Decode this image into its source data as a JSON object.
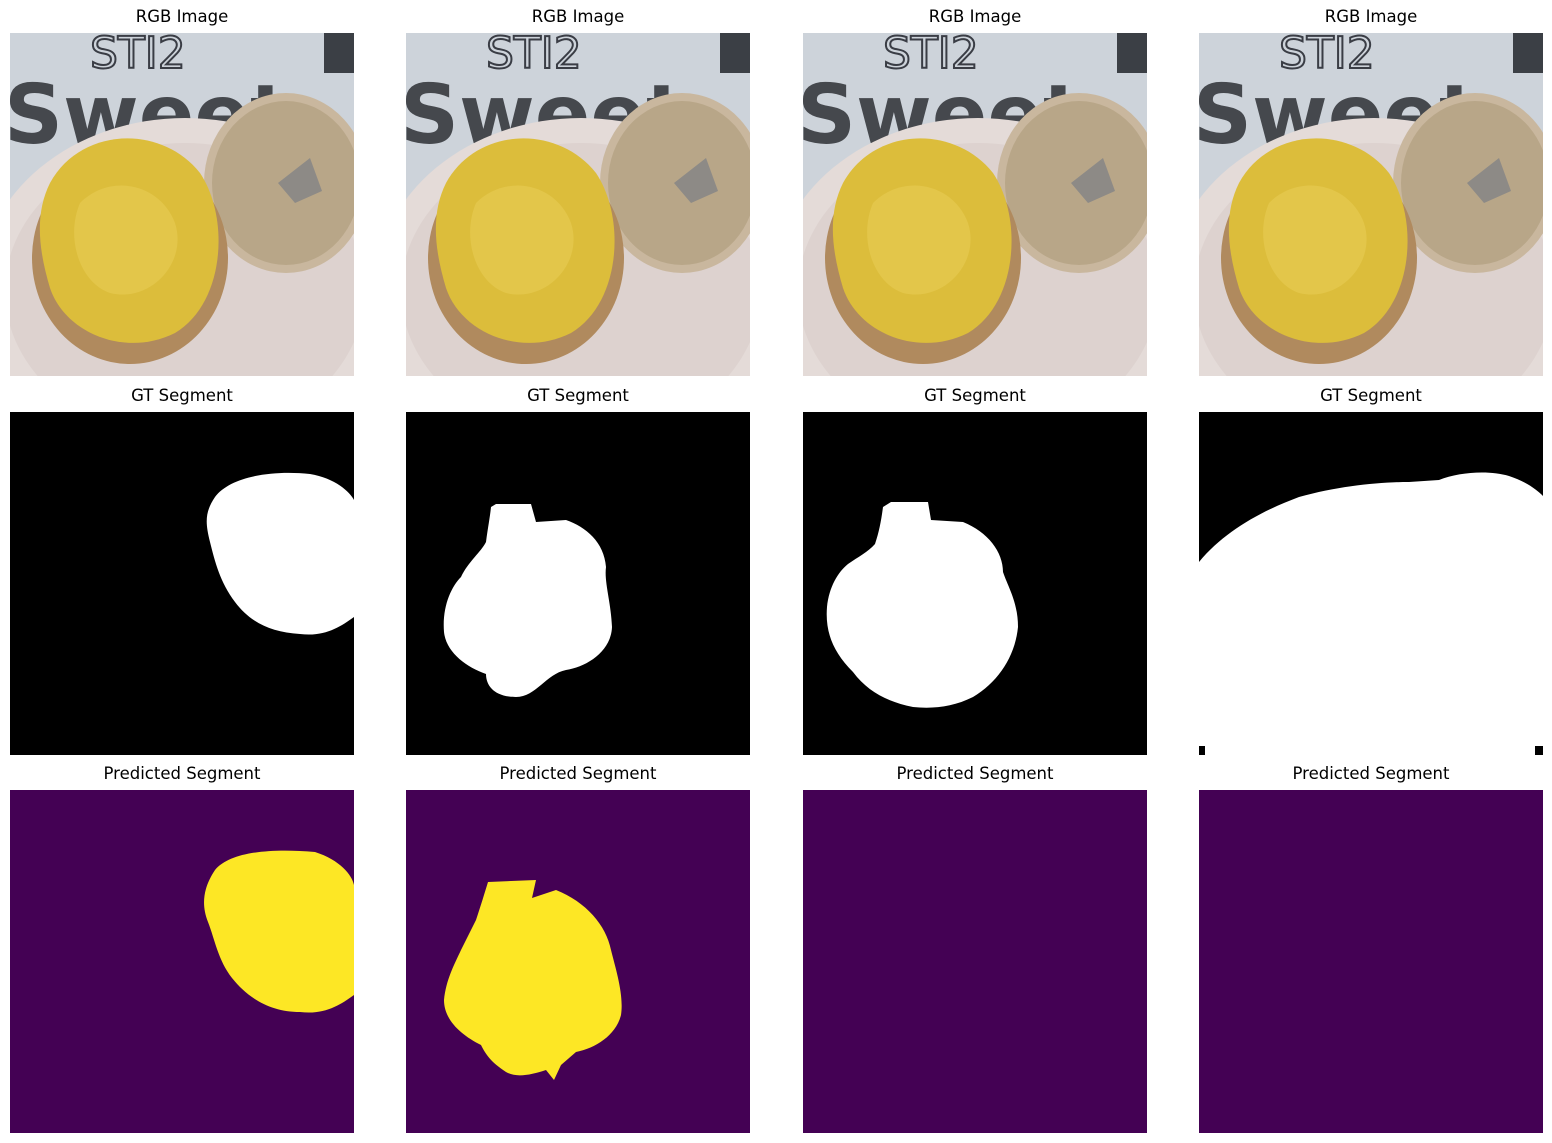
{
  "figure": {
    "rows": [
      {
        "kind": "rgb",
        "titles": [
          "RGB Image",
          "RGB Image",
          "RGB Image",
          "RGB Image"
        ]
      },
      {
        "kind": "gt",
        "titles": [
          "GT Segment",
          "GT Segment",
          "GT Segment",
          "GT Segment"
        ]
      },
      {
        "kind": "pred",
        "titles": [
          "Predicted Segment",
          "Predicted Segment",
          "Predicted Segment",
          "Predicted Segment"
        ]
      }
    ],
    "photo_text": {
      "handwriting": "STI2",
      "brand": "Sweet"
    },
    "colors": {
      "mask_background": "#000000",
      "mask_foreground": "#ffffff",
      "pred_background": "#440154",
      "pred_foreground": "#fde725",
      "plate": "#e6dcd9",
      "paper": "#cfd6de",
      "egg": "#d9b83a",
      "bread": "#b9a68a"
    }
  }
}
